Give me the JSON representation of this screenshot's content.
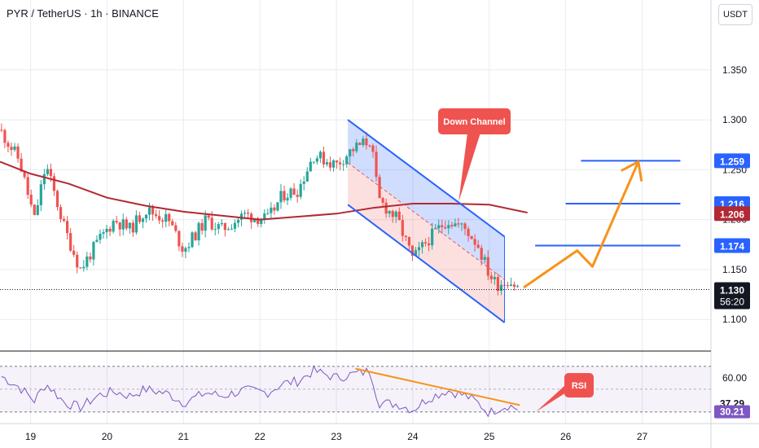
{
  "header": {
    "title": "PYR / TetherUS · 1h · BINANCE",
    "currency": "USDT"
  },
  "colors": {
    "bull": "#26a69a",
    "bear": "#ef5350",
    "ma": "#b22833",
    "channel": "#2962ff",
    "arrow": "#f7931a",
    "level": "#2962ff",
    "rsi": "#7e57c2",
    "rsi_trend": "#f7931a"
  },
  "chart_data": [
    {
      "type": "candlestick",
      "title": "PYR / TetherUS · 1h · BINANCE",
      "y_axis_ticks": [
        "1.350",
        "1.300",
        "1.250",
        "1.200",
        "1.150",
        "1.100"
      ],
      "x_axis_ticks": [
        "19",
        "20",
        "21",
        "22",
        "23",
        "24",
        "25",
        "26",
        "27"
      ],
      "ylim": [
        1.07,
        1.42
      ],
      "xlim": [
        18.6,
        27.9
      ],
      "current_price": "1.130",
      "countdown": "56:20",
      "price_labels": [
        {
          "label": "1.259",
          "value": 1.259,
          "kind": "level"
        },
        {
          "label": "1.216",
          "value": 1.216,
          "kind": "level"
        },
        {
          "label": "1.206",
          "value": 1.206,
          "kind": "ma"
        },
        {
          "label": "1.174",
          "value": 1.174,
          "kind": "level"
        }
      ],
      "horizontal_levels": [
        {
          "value": 1.259,
          "x_from": 26.2,
          "x_to": 27.5
        },
        {
          "value": 1.216,
          "x_from": 26.0,
          "x_to": 27.5
        },
        {
          "value": 1.174,
          "x_from": 25.6,
          "x_to": 27.5
        }
      ],
      "price_anchors": [
        {
          "x": 18.6,
          "y": 1.29
        },
        {
          "x": 18.85,
          "y": 1.26
        },
        {
          "x": 19.05,
          "y": 1.2
        },
        {
          "x": 19.2,
          "y": 1.255
        },
        {
          "x": 19.45,
          "y": 1.19
        },
        {
          "x": 19.65,
          "y": 1.15
        },
        {
          "x": 19.9,
          "y": 1.18
        },
        {
          "x": 20.1,
          "y": 1.2
        },
        {
          "x": 20.3,
          "y": 1.19
        },
        {
          "x": 20.5,
          "y": 1.21
        },
        {
          "x": 20.8,
          "y": 1.2
        },
        {
          "x": 21.0,
          "y": 1.17
        },
        {
          "x": 21.3,
          "y": 1.2
        },
        {
          "x": 21.5,
          "y": 1.19
        },
        {
          "x": 21.8,
          "y": 1.205
        },
        {
          "x": 22.1,
          "y": 1.2
        },
        {
          "x": 22.3,
          "y": 1.225
        },
        {
          "x": 22.5,
          "y": 1.23
        },
        {
          "x": 22.7,
          "y": 1.265
        },
        {
          "x": 23.0,
          "y": 1.255
        },
        {
          "x": 23.2,
          "y": 1.27
        },
        {
          "x": 23.45,
          "y": 1.28
        },
        {
          "x": 23.55,
          "y": 1.22
        },
        {
          "x": 23.8,
          "y": 1.2
        },
        {
          "x": 24.0,
          "y": 1.16
        },
        {
          "x": 24.2,
          "y": 1.18
        },
        {
          "x": 24.45,
          "y": 1.2
        },
        {
          "x": 24.7,
          "y": 1.19
        },
        {
          "x": 24.85,
          "y": 1.175
        },
        {
          "x": 25.0,
          "y": 1.145
        },
        {
          "x": 25.1,
          "y": 1.135
        },
        {
          "x": 25.25,
          "y": 1.14
        },
        {
          "x": 25.4,
          "y": 1.13
        }
      ],
      "moving_average": [
        {
          "x": 18.6,
          "y": 1.258
        },
        {
          "x": 19.0,
          "y": 1.246
        },
        {
          "x": 19.5,
          "y": 1.236
        },
        {
          "x": 20.0,
          "y": 1.222
        },
        {
          "x": 20.5,
          "y": 1.214
        },
        {
          "x": 21.0,
          "y": 1.208
        },
        {
          "x": 21.5,
          "y": 1.204
        },
        {
          "x": 22.0,
          "y": 1.2
        },
        {
          "x": 22.5,
          "y": 1.203
        },
        {
          "x": 23.0,
          "y": 1.206
        },
        {
          "x": 23.5,
          "y": 1.212
        },
        {
          "x": 24.0,
          "y": 1.216
        },
        {
          "x": 24.5,
          "y": 1.216
        },
        {
          "x": 25.0,
          "y": 1.215
        },
        {
          "x": 25.5,
          "y": 1.207
        }
      ],
      "channel": {
        "upper": [
          {
            "x": 23.15,
            "y": 1.3
          },
          {
            "x": 25.2,
            "y": 1.183
          }
        ],
        "lower": [
          {
            "x": 23.15,
            "y": 1.215
          },
          {
            "x": 25.2,
            "y": 1.097
          }
        ],
        "mid": [
          {
            "x": 23.15,
            "y": 1.257
          },
          {
            "x": 25.2,
            "y": 1.14
          }
        ]
      },
      "projection_path": [
        {
          "x": 25.45,
          "y": 1.132
        },
        {
          "x": 26.15,
          "y": 1.169
        },
        {
          "x": 26.35,
          "y": 1.153
        },
        {
          "x": 26.95,
          "y": 1.258
        }
      ],
      "annotations": [
        {
          "text": "Down Channel",
          "anchor": {
            "x": 24.6,
            "y": 1.218
          }
        }
      ]
    },
    {
      "type": "line",
      "title": "RSI",
      "y_axis_ticks": [
        "60.00"
      ],
      "ylim": [
        22,
        82
      ],
      "current_labels": [
        "37.29",
        "30.21"
      ],
      "bands": [
        70,
        30
      ],
      "series": [
        {
          "values": [
            {
              "x": 18.6,
              "y": 62
            },
            {
              "x": 18.85,
              "y": 52
            },
            {
              "x": 19.05,
              "y": 40
            },
            {
              "x": 19.2,
              "y": 55
            },
            {
              "x": 19.45,
              "y": 38
            },
            {
              "x": 19.65,
              "y": 34
            },
            {
              "x": 19.9,
              "y": 45
            },
            {
              "x": 20.1,
              "y": 48
            },
            {
              "x": 20.3,
              "y": 44
            },
            {
              "x": 20.5,
              "y": 50
            },
            {
              "x": 20.8,
              "y": 46
            },
            {
              "x": 21.0,
              "y": 38
            },
            {
              "x": 21.3,
              "y": 47
            },
            {
              "x": 21.5,
              "y": 44
            },
            {
              "x": 21.8,
              "y": 49
            },
            {
              "x": 22.1,
              "y": 47
            },
            {
              "x": 22.3,
              "y": 55
            },
            {
              "x": 22.5,
              "y": 57
            },
            {
              "x": 22.7,
              "y": 66
            },
            {
              "x": 23.0,
              "y": 60
            },
            {
              "x": 23.2,
              "y": 63
            },
            {
              "x": 23.45,
              "y": 66
            },
            {
              "x": 23.55,
              "y": 38
            },
            {
              "x": 23.8,
              "y": 37
            },
            {
              "x": 24.0,
              "y": 32
            },
            {
              "x": 24.2,
              "y": 42
            },
            {
              "x": 24.45,
              "y": 49
            },
            {
              "x": 24.7,
              "y": 44
            },
            {
              "x": 24.85,
              "y": 38
            },
            {
              "x": 25.0,
              "y": 29
            },
            {
              "x": 25.1,
              "y": 33
            },
            {
              "x": 25.25,
              "y": 36
            },
            {
              "x": 25.4,
              "y": 32
            }
          ]
        }
      ],
      "trendline": [
        {
          "x": 23.25,
          "y": 68
        },
        {
          "x": 25.4,
          "y": 36
        }
      ],
      "annotations": [
        {
          "text": "RSI",
          "anchor": {
            "x": 25.4,
            "y": 36
          }
        }
      ]
    }
  ]
}
